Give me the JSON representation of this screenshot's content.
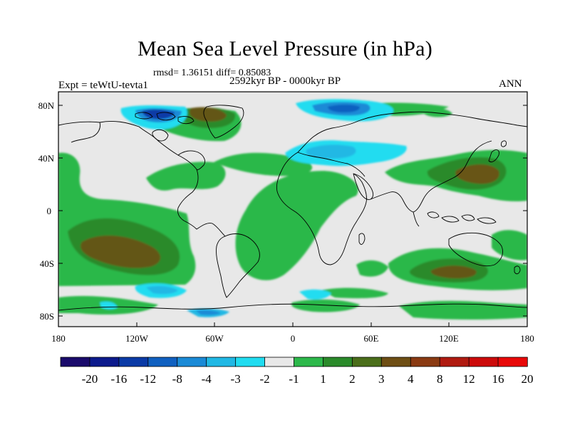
{
  "title": "Mean Sea Level Pressure (in hPa)",
  "stats": "rmsd= 1.36151 diff= 0.85083",
  "experiment": "Expt = teWtU-tevta1",
  "period": "2592kyr BP - 0000kyr BP",
  "season": "ANN",
  "axes": {
    "lat_ticks": [
      "80N",
      "40N",
      "0",
      "40S",
      "80S"
    ],
    "lon_ticks": [
      "180",
      "120W",
      "60W",
      "0",
      "60E",
      "120E",
      "180"
    ]
  },
  "colorbar": {
    "colors": [
      "#1a0a6b",
      "#0c1a8c",
      "#0a3aa6",
      "#1060c0",
      "#1a8ad6",
      "#20b8e4",
      "#20dcf0",
      "#e8e8e8",
      "#2cb84a",
      "#2a8a2a",
      "#4a6e1a",
      "#6e4e14",
      "#8a3a12",
      "#b01a10",
      "#cc0a0a",
      "#e80808"
    ],
    "labels": [
      "-20",
      "-16",
      "-12",
      "-8",
      "-4",
      "-3",
      "-2",
      "-1",
      "1",
      "2",
      "3",
      "4",
      "8",
      "12",
      "16",
      "20"
    ]
  },
  "palette": {
    "neutral": "#e8e8e8",
    "pos1": "#2cb84a",
    "pos2": "#2a8a2a",
    "pos3": "#6e4e14",
    "neg1": "#20dcf0",
    "neg2": "#20b8e4",
    "neg3": "#1a8ad6",
    "neg4": "#0a3aa6",
    "coast": "#000000"
  }
}
